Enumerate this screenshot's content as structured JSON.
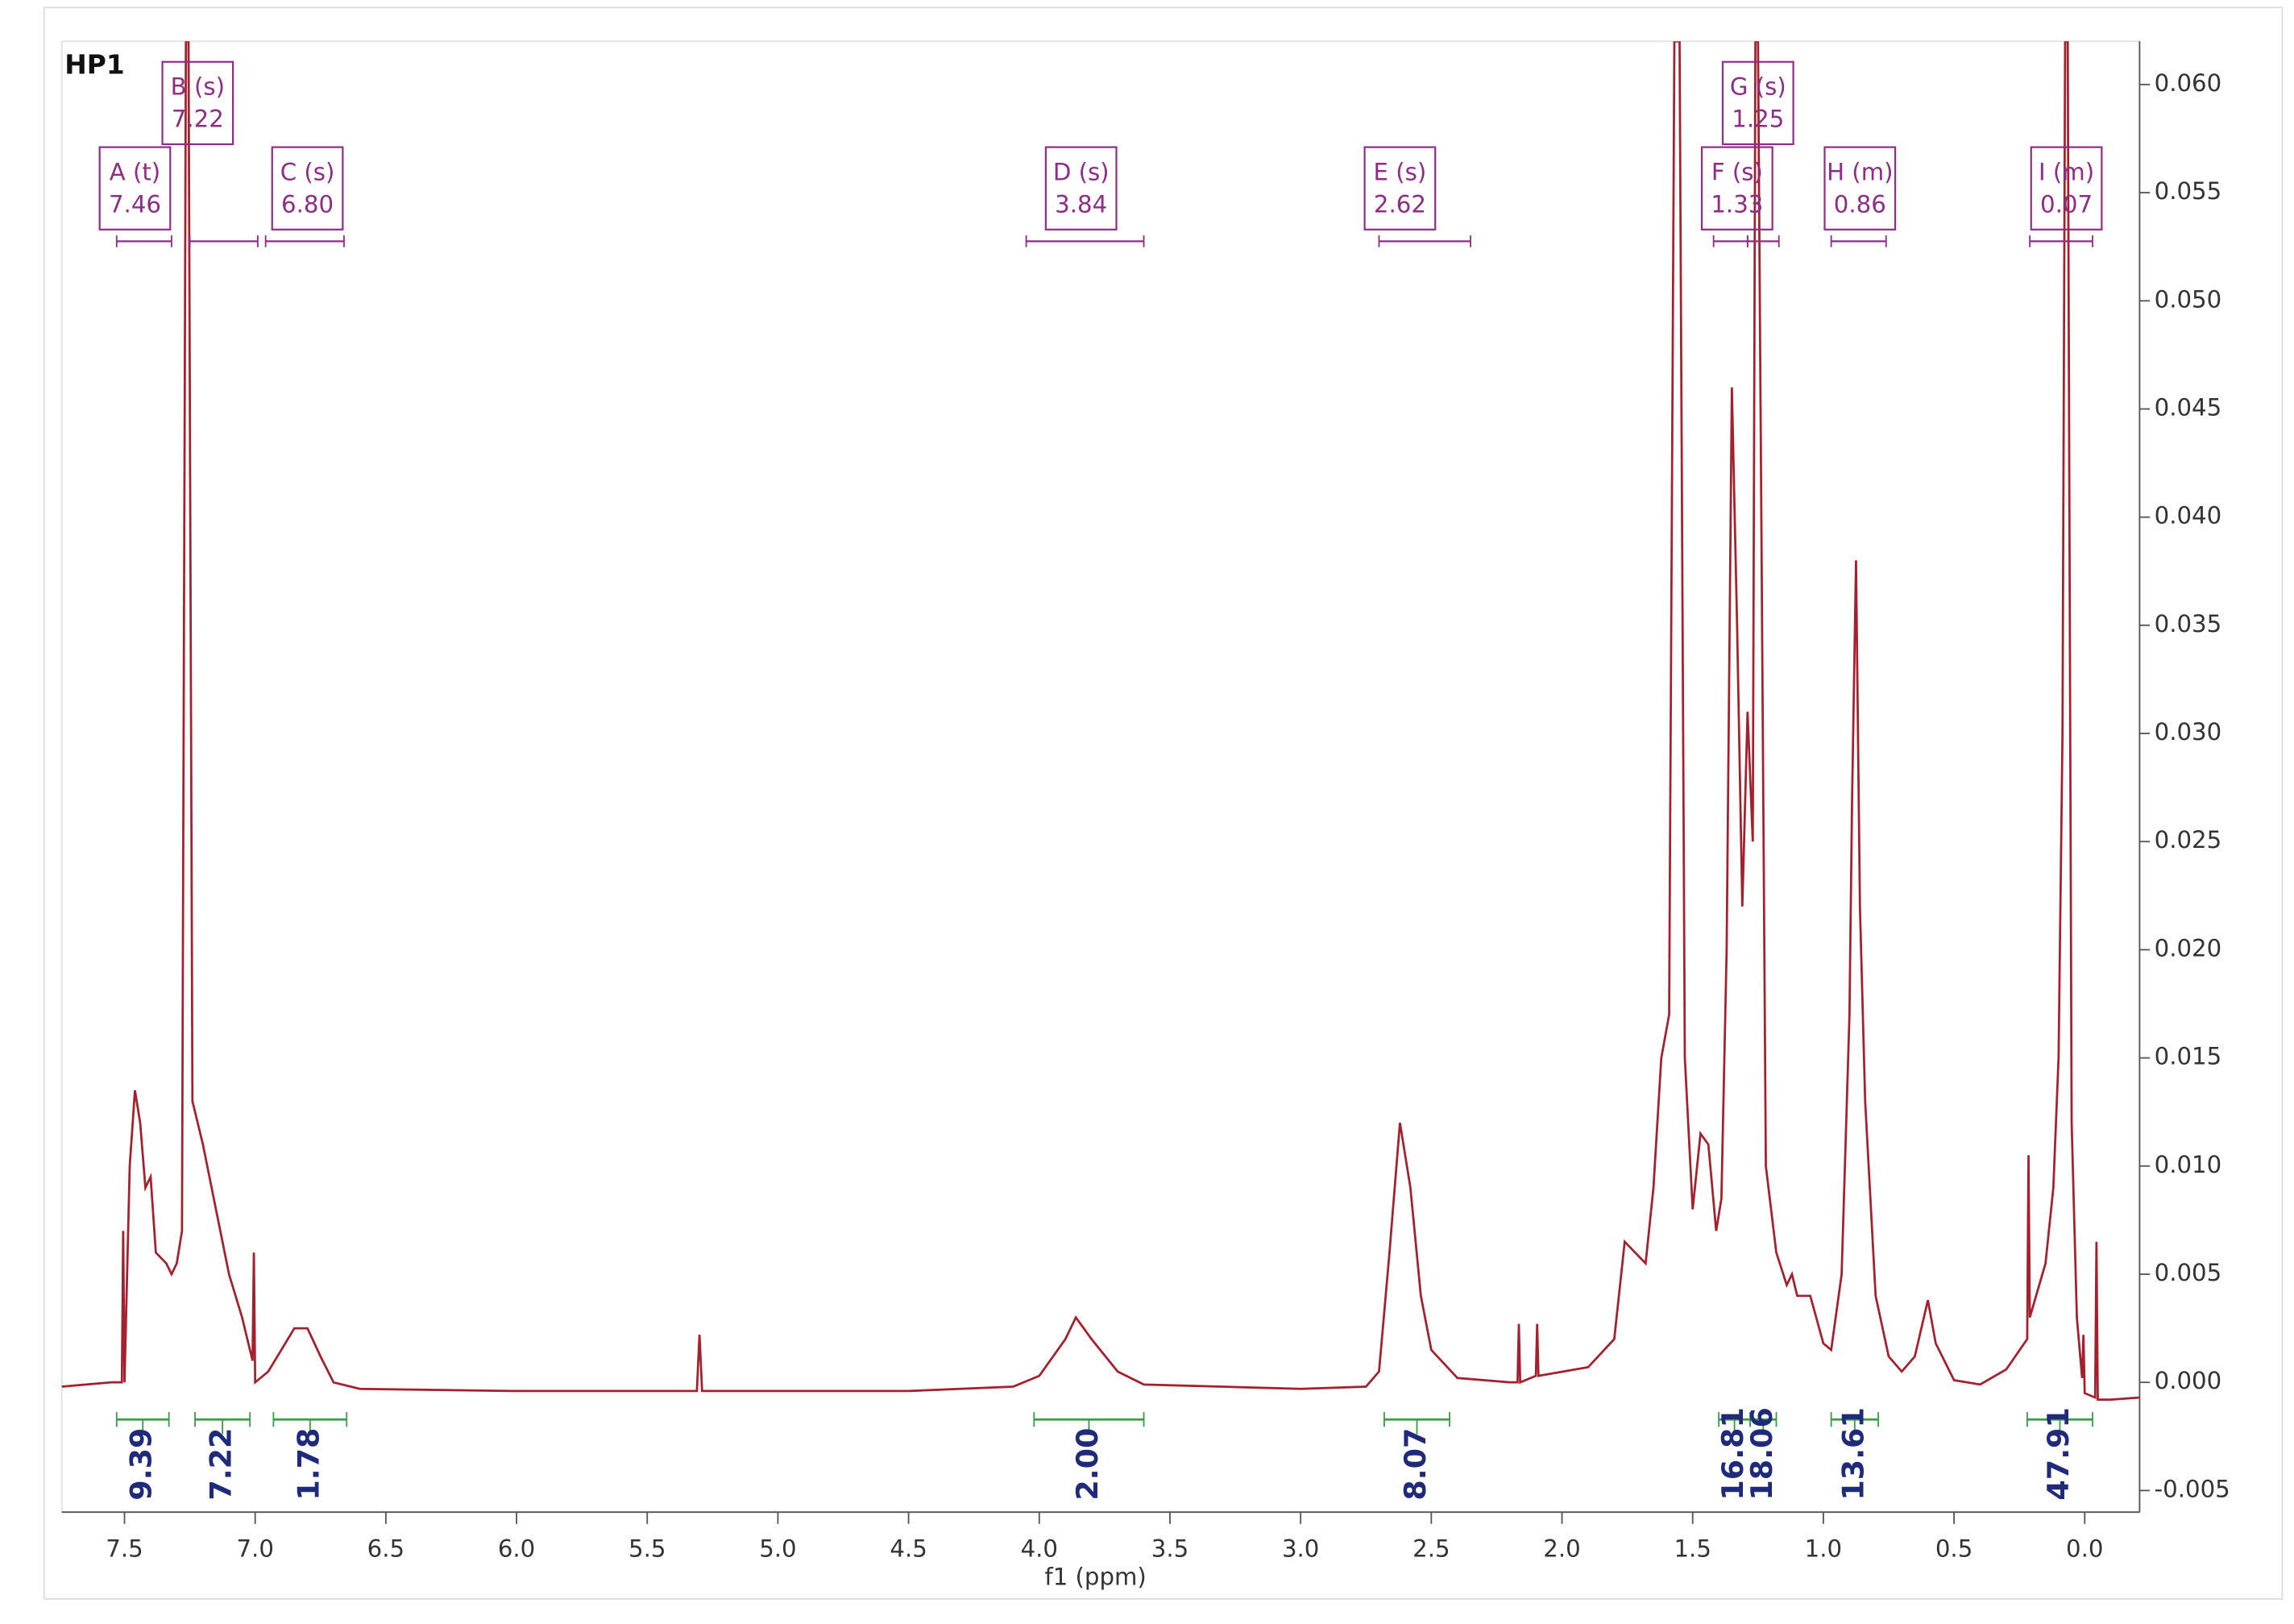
{
  "chart_data": {
    "type": "line",
    "title": "HP1",
    "x_label": "f1 (ppm)",
    "xlim": [
      7.74,
      -0.21
    ],
    "ylim": [
      -0.006,
      0.062
    ],
    "xticks": [
      7.5,
      {
        "value": 7,
        "label": "7.0"
      },
      6.5,
      {
        "value": 6,
        "label": "6.0"
      },
      5.5,
      {
        "value": 5,
        "label": "5.0"
      },
      4.5,
      {
        "value": 4,
        "label": "4.0"
      },
      3.5,
      {
        "value": 3,
        "label": "3.0"
      },
      2.5,
      {
        "value": 2,
        "label": "2.0"
      },
      1.5,
      {
        "value": 1,
        "label": "1.0"
      },
      0.5,
      {
        "value": 0,
        "label": "0.0"
      }
    ],
    "yticks": [
      {
        "value": -0.005,
        "label": "-0.005"
      },
      {
        "value": 0,
        "label": "0.000"
      },
      0.005,
      {
        "value": 0.01,
        "label": "0.010"
      },
      0.015,
      {
        "value": 0.02,
        "label": "0.020"
      },
      0.025,
      {
        "value": 0.03,
        "label": "0.030"
      },
      0.035,
      {
        "value": 0.04,
        "label": "0.040"
      },
      0.045,
      {
        "value": 0.05,
        "label": "0.050"
      },
      0.055,
      {
        "value": 0.06,
        "label": "0.060"
      }
    ],
    "color": "#a3202c",
    "x": [
      7.74,
      7.55,
      7.51,
      7.505,
      7.5,
      7.48,
      7.46,
      7.44,
      7.42,
      7.4,
      7.38,
      7.34,
      7.32,
      7.3,
      7.28,
      7.265,
      7.255,
      7.24,
      7.22,
      7.2,
      7.15,
      7.1,
      7.05,
      7.01,
      7.005,
      7.0,
      6.95,
      6.9,
      6.85,
      6.8,
      6.75,
      6.7,
      6.6,
      6.0,
      5.31,
      5.3,
      5.29,
      4.5,
      4.1,
      4.0,
      3.9,
      3.86,
      3.8,
      3.7,
      3.6,
      3.0,
      2.75,
      2.7,
      2.66,
      2.62,
      2.58,
      2.54,
      2.5,
      2.4,
      2.2,
      2.17,
      2.165,
      2.16,
      2.1,
      2.095,
      2.09,
      1.9,
      1.8,
      1.76,
      1.72,
      1.68,
      1.65,
      1.62,
      1.59,
      1.57,
      1.55,
      1.53,
      1.5,
      1.47,
      1.44,
      1.41,
      1.39,
      1.37,
      1.35,
      1.33,
      1.31,
      1.29,
      1.27,
      1.26,
      1.25,
      1.22,
      1.18,
      1.14,
      1.12,
      1.1,
      1.05,
      1.0,
      0.97,
      0.93,
      0.9,
      0.89,
      0.875,
      0.86,
      0.84,
      0.8,
      0.75,
      0.7,
      0.65,
      0.6,
      0.57,
      0.5,
      0.4,
      0.3,
      0.22,
      0.215,
      0.21,
      0.15,
      0.12,
      0.1,
      0.085,
      0.075,
      0.065,
      0.05,
      0.03,
      0.01,
      0.005,
      0.0,
      -0.04,
      -0.045,
      -0.05,
      -0.1,
      -0.21
    ],
    "y": [
      -0.0002,
      0.0,
      0.0,
      0.007,
      0.0,
      0.01,
      0.0135,
      0.012,
      0.009,
      0.0095,
      0.006,
      0.0055,
      0.005,
      0.0055,
      0.007,
      0.062,
      0.062,
      0.013,
      0.012,
      0.011,
      0.008,
      0.005,
      0.003,
      0.001,
      0.006,
      0.0,
      0.0005,
      0.0015,
      0.0025,
      0.0025,
      0.0012,
      0.0,
      -0.0003,
      -0.0004,
      -0.0004,
      0.0022,
      -0.0004,
      -0.0004,
      -0.0002,
      0.0003,
      0.002,
      0.003,
      0.002,
      0.0005,
      -0.0001,
      -0.0003,
      -0.0002,
      0.0005,
      0.006,
      0.012,
      0.009,
      0.004,
      0.0015,
      0.0002,
      0.0,
      0.0,
      0.0027,
      0.0,
      0.0003,
      0.0027,
      0.0003,
      0.0007,
      0.002,
      0.0065,
      0.006,
      0.0055,
      0.009,
      0.015,
      0.017,
      0.062,
      0.062,
      0.015,
      0.008,
      0.0115,
      0.011,
      0.007,
      0.0085,
      0.02,
      0.046,
      0.035,
      0.022,
      0.031,
      0.025,
      0.062,
      0.062,
      0.01,
      0.006,
      0.0045,
      0.005,
      0.004,
      0.004,
      0.0018,
      0.0015,
      0.005,
      0.017,
      0.027,
      0.038,
      0.022,
      0.013,
      0.004,
      0.0012,
      0.0005,
      0.0012,
      0.0038,
      0.0018,
      0.0001,
      -0.0001,
      0.0006,
      0.002,
      0.0105,
      0.003,
      0.0055,
      0.009,
      0.015,
      0.03,
      0.062,
      0.062,
      0.012,
      0.003,
      0.0002,
      0.0022,
      -0.0005,
      -0.0007,
      0.0065,
      -0.0008,
      -0.0008,
      -0.0007
    ],
    "multiplets": [
      {
        "name": "A (t)",
        "shift": "7.46",
        "from": 7.53,
        "to": 7.32
      },
      {
        "name": "B (s)",
        "shift": "7.22",
        "from": 7.25,
        "to": 6.99
      },
      {
        "name": "C (s)",
        "shift": "6.80",
        "from": 6.96,
        "to": 6.66
      },
      {
        "name": "D (s)",
        "shift": "3.84",
        "from": 4.05,
        "to": 3.6
      },
      {
        "name": "E (s)",
        "shift": "2.62",
        "from": 2.7,
        "to": 2.35
      },
      {
        "name": "F (s)",
        "shift": "1.33",
        "from": 1.42,
        "to": 1.29
      },
      {
        "name": "G (s)",
        "shift": "1.25",
        "from": 1.29,
        "to": 1.17
      },
      {
        "name": "H (m)",
        "shift": "0.86",
        "from": 0.97,
        "to": 0.76
      },
      {
        "name": "I (m)",
        "shift": "0.07",
        "from": 0.21,
        "to": -0.03
      }
    ],
    "integrals": [
      {
        "value": "9.39",
        "from": 7.53,
        "to": 7.33
      },
      {
        "value": "7.22",
        "from": 7.23,
        "to": 7.02
      },
      {
        "value": "1.78",
        "from": 6.93,
        "to": 6.65
      },
      {
        "value": "2.00",
        "from": 4.02,
        "to": 3.6
      },
      {
        "value": "8.07",
        "from": 2.68,
        "to": 2.43
      },
      {
        "value": "16.81",
        "from": 1.4,
        "to": 1.28
      },
      {
        "value": "18.06",
        "from": 1.28,
        "to": 1.18
      },
      {
        "value": "13.61",
        "from": 0.97,
        "to": 0.79
      },
      {
        "value": "47.91",
        "from": 0.22,
        "to": -0.03
      }
    ]
  }
}
